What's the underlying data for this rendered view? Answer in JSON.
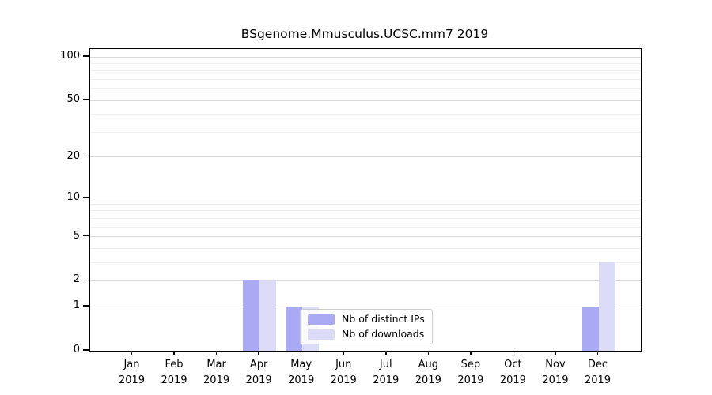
{
  "chart": {
    "title": "BSgenome.Mmusculus.UCSC.mm7 2019"
  },
  "chart_data": {
    "type": "bar",
    "title": "BSgenome.Mmusculus.UCSC.mm7 2019",
    "categories": [
      "Jan",
      "Feb",
      "Mar",
      "Apr",
      "May",
      "Jun",
      "Jul",
      "Aug",
      "Sep",
      "Oct",
      "Nov",
      "Dec"
    ],
    "year": "2019",
    "series": [
      {
        "name": "Nb of distinct IPs",
        "key": "distinct-ips",
        "color": "#a9a9f4",
        "values": [
          0,
          0,
          0,
          2,
          1,
          0,
          0,
          0,
          0,
          0,
          0,
          1
        ]
      },
      {
        "name": "Nb of downloads",
        "key": "downloads",
        "color": "#dcdcf8",
        "values": [
          0,
          0,
          0,
          2,
          1,
          0,
          0,
          0,
          0,
          0,
          0,
          3
        ]
      }
    ],
    "xlabel": "",
    "ylabel": "",
    "scale": "log1p",
    "yticks": [
      0,
      1,
      2,
      5,
      10,
      20,
      50,
      100
    ],
    "minor_yticks": [
      3,
      4,
      6,
      7,
      8,
      9,
      30,
      40,
      60,
      70,
      80,
      90
    ],
    "ylim": [
      0,
      114
    ],
    "grid": true,
    "legend_position": "inside-bottom-center"
  },
  "colors": {
    "distinct_ips": "#a9a9f4",
    "downloads": "#dcdcf8",
    "grid_major": "#d9d9d9",
    "grid_minor": "#f1f1f1",
    "spine": "#000000"
  }
}
